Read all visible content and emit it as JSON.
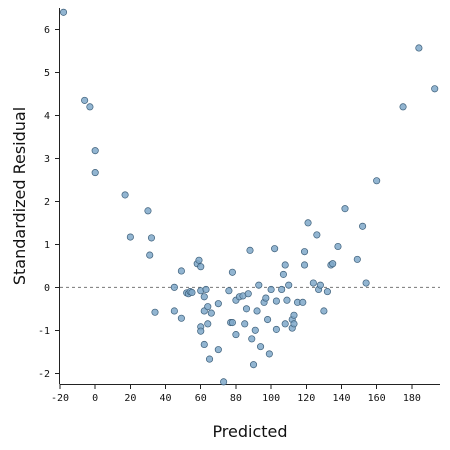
{
  "chart_data": {
    "type": "scatter",
    "title": "",
    "xlabel": "Predicted",
    "ylabel": "Standardized Residual",
    "xlim": [
      -20,
      196
    ],
    "ylim": [
      -2.25,
      6.5
    ],
    "xticks": [
      "-20",
      "0",
      "20",
      "40",
      "60",
      "80",
      "100",
      "120",
      "140",
      "160",
      "180"
    ],
    "yticks": [
      "-2",
      "-1",
      "0",
      "1",
      "2",
      "3",
      "4",
      "5",
      "6"
    ],
    "reference_line": {
      "y": 0,
      "style": "dashed"
    },
    "grid": false,
    "points": [
      {
        "x": -18,
        "y": 6.4
      },
      {
        "x": -6,
        "y": 4.35
      },
      {
        "x": -3,
        "y": 4.2
      },
      {
        "x": 0,
        "y": 3.18
      },
      {
        "x": 0,
        "y": 2.67
      },
      {
        "x": 17,
        "y": 2.15
      },
      {
        "x": 20,
        "y": 1.17
      },
      {
        "x": 30,
        "y": 1.78
      },
      {
        "x": 31,
        "y": 0.75
      },
      {
        "x": 32,
        "y": 1.15
      },
      {
        "x": 34,
        "y": -0.58
      },
      {
        "x": 45,
        "y": 0.0
      },
      {
        "x": 45,
        "y": -0.55
      },
      {
        "x": 49,
        "y": 0.38
      },
      {
        "x": 49,
        "y": -0.72
      },
      {
        "x": 52,
        "y": -0.13
      },
      {
        "x": 53,
        "y": -0.15
      },
      {
        "x": 54,
        "y": -0.1
      },
      {
        "x": 55,
        "y": -0.12
      },
      {
        "x": 58,
        "y": 0.55
      },
      {
        "x": 59,
        "y": 0.63
      },
      {
        "x": 60,
        "y": 0.48
      },
      {
        "x": 60,
        "y": -0.08
      },
      {
        "x": 60,
        "y": -0.92
      },
      {
        "x": 60,
        "y": -1.02
      },
      {
        "x": 62,
        "y": -0.22
      },
      {
        "x": 62,
        "y": -0.55
      },
      {
        "x": 62,
        "y": -1.33
      },
      {
        "x": 63,
        "y": -0.05
      },
      {
        "x": 64,
        "y": -0.45
      },
      {
        "x": 64,
        "y": -0.85
      },
      {
        "x": 65,
        "y": -1.67
      },
      {
        "x": 66,
        "y": -0.6
      },
      {
        "x": 70,
        "y": -0.38
      },
      {
        "x": 70,
        "y": -1.45
      },
      {
        "x": 73,
        "y": -2.2
      },
      {
        "x": 76,
        "y": -0.08
      },
      {
        "x": 77,
        "y": -0.82
      },
      {
        "x": 78,
        "y": -0.82
      },
      {
        "x": 78,
        "y": 0.35
      },
      {
        "x": 80,
        "y": -1.1
      },
      {
        "x": 80,
        "y": -0.3
      },
      {
        "x": 82,
        "y": -0.22
      },
      {
        "x": 84,
        "y": -0.2
      },
      {
        "x": 85,
        "y": -0.85
      },
      {
        "x": 86,
        "y": -0.5
      },
      {
        "x": 87,
        "y": -0.15
      },
      {
        "x": 88,
        "y": 0.86
      },
      {
        "x": 89,
        "y": -1.2
      },
      {
        "x": 90,
        "y": -1.8
      },
      {
        "x": 91,
        "y": -1.0
      },
      {
        "x": 92,
        "y": -0.55
      },
      {
        "x": 93,
        "y": 0.05
      },
      {
        "x": 94,
        "y": -1.38
      },
      {
        "x": 96,
        "y": -0.35
      },
      {
        "x": 97,
        "y": -0.25
      },
      {
        "x": 98,
        "y": -0.75
      },
      {
        "x": 99,
        "y": -1.55
      },
      {
        "x": 100,
        "y": -0.05
      },
      {
        "x": 102,
        "y": 0.9
      },
      {
        "x": 103,
        "y": -0.32
      },
      {
        "x": 103,
        "y": -0.98
      },
      {
        "x": 106,
        "y": -0.05
      },
      {
        "x": 107,
        "y": 0.3
      },
      {
        "x": 108,
        "y": 0.52
      },
      {
        "x": 108,
        "y": -0.85
      },
      {
        "x": 109,
        "y": -0.3
      },
      {
        "x": 110,
        "y": 0.05
      },
      {
        "x": 112,
        "y": -0.75
      },
      {
        "x": 112,
        "y": -0.95
      },
      {
        "x": 113,
        "y": -0.65
      },
      {
        "x": 113,
        "y": -0.85
      },
      {
        "x": 115,
        "y": -0.35
      },
      {
        "x": 118,
        "y": -0.35
      },
      {
        "x": 119,
        "y": 0.83
      },
      {
        "x": 119,
        "y": 0.52
      },
      {
        "x": 121,
        "y": 1.5
      },
      {
        "x": 124,
        "y": 0.1
      },
      {
        "x": 126,
        "y": 1.22
      },
      {
        "x": 127,
        "y": -0.05
      },
      {
        "x": 128,
        "y": 0.05
      },
      {
        "x": 130,
        "y": -0.55
      },
      {
        "x": 132,
        "y": -0.1
      },
      {
        "x": 134,
        "y": 0.52
      },
      {
        "x": 135,
        "y": 0.55
      },
      {
        "x": 138,
        "y": 0.95
      },
      {
        "x": 142,
        "y": 1.83
      },
      {
        "x": 149,
        "y": 0.65
      },
      {
        "x": 152,
        "y": 1.42
      },
      {
        "x": 154,
        "y": 0.1
      },
      {
        "x": 160,
        "y": 2.48
      },
      {
        "x": 175,
        "y": 4.2
      },
      {
        "x": 184,
        "y": 5.57
      },
      {
        "x": 193,
        "y": 4.62
      }
    ]
  }
}
